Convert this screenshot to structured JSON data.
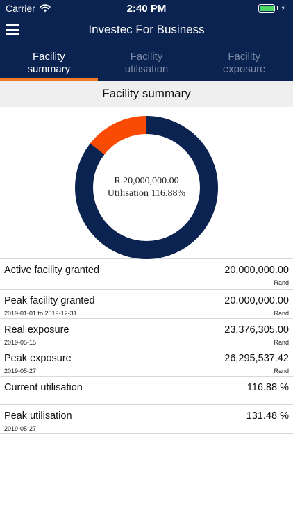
{
  "status_bar": {
    "carrier": "Carrier",
    "time": "2:40 PM"
  },
  "header": {
    "title": "Investec For Business"
  },
  "tabs": [
    {
      "line1": "Facility",
      "line2": "summary",
      "active": true
    },
    {
      "line1": "Facility",
      "line2": "utilisation",
      "active": false
    },
    {
      "line1": "Facility",
      "line2": "exposure",
      "active": false
    }
  ],
  "section_title": "Facility summary",
  "donut": {
    "amount": "R 20,000,000.00",
    "utilisation": "Utilisation 116.88%",
    "fraction_primary": 0.8557,
    "fraction_excess": 0.1443,
    "primary_color": "#0b2350",
    "excess_color": "#fa4b05"
  },
  "rows": [
    {
      "label": "Active facility granted",
      "sub": "",
      "value": "20,000,000.00",
      "unit": "Rand"
    },
    {
      "label": "Peak facility granted",
      "sub": "2019-01-01 to 2019-12-31",
      "value": "20,000,000.00",
      "unit": "Rand"
    },
    {
      "label": "Real exposure",
      "sub": "2019-05-15",
      "value": "23,376,305.00",
      "unit": "Rand"
    },
    {
      "label": "Peak exposure",
      "sub": "2019-05-27",
      "value": "26,295,537.42",
      "unit": "Rand"
    },
    {
      "label": "Current utilisation",
      "sub": "",
      "value": "116.88 %",
      "unit": ""
    },
    {
      "label": "Peak utilisation",
      "sub": "2019-05-27",
      "value": "131.48 %",
      "unit": ""
    }
  ]
}
